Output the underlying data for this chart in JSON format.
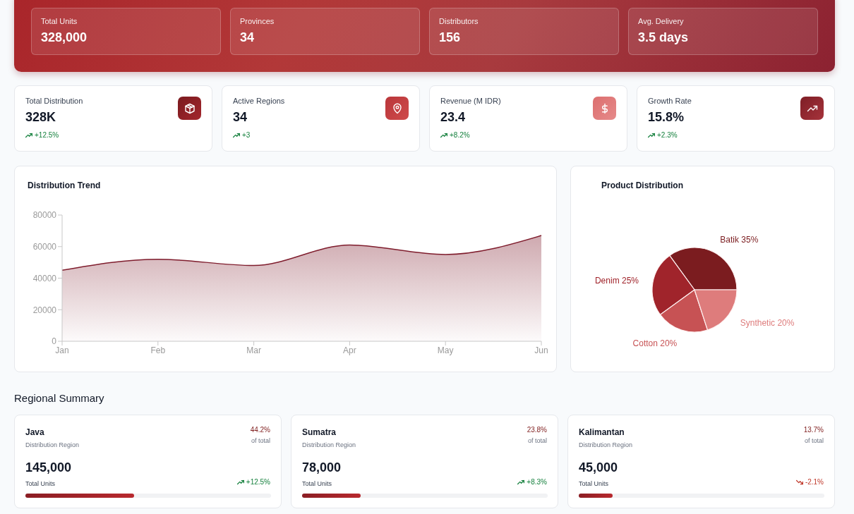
{
  "chart_data": [
    {
      "type": "other",
      "categories": [
        "Total Units",
        "Provinces",
        "Distributors",
        "Avg. Delivery"
      ],
      "annotations": [
        "328,000",
        "34",
        "156",
        "3.5 days"
      ]
    },
    {
      "type": "other",
      "categories": [
        "Total Distribution",
        "Active Regions",
        "Revenue (M IDR)",
        "Growth Rate"
      ],
      "annotations": [
        "328K",
        "+12.5%",
        "34",
        "+3",
        "23.4",
        "+8.2%",
        "15.8%",
        "+2.3%"
      ]
    },
    {
      "type": "area",
      "title": "Distribution Trend",
      "categories": [
        "Jan",
        "Feb",
        "Mar",
        "Apr",
        "May",
        "Jun"
      ],
      "values": [
        45000,
        52000,
        48000,
        61000,
        55000,
        67000
      ],
      "color": "#7f1d2d",
      "ylim": [
        0,
        80000
      ],
      "yticks": [
        0,
        20000,
        40000,
        60000,
        80000
      ]
    },
    {
      "type": "pie",
      "title": "Product Distribution",
      "categories": [
        "Batik",
        "Denim",
        "Cotton",
        "Synthetic"
      ],
      "values": [
        35,
        25,
        20,
        20
      ],
      "value_labels": [
        "35%",
        "25%",
        "20%",
        "20%"
      ],
      "colors": [
        "#7b1c1f",
        "#a0242b",
        "#c75254",
        "#de7c7c"
      ]
    },
    {
      "type": "other",
      "title": "Regional Summary",
      "categories": [
        "Java"
      ],
      "values": [
        44.2
      ],
      "value_labels": [
        "44.2%"
      ],
      "annotations": [
        "Distribution Region",
        "of total",
        "145,000",
        "Total Units",
        "+12.5%"
      ]
    },
    {
      "type": "other",
      "categories": [
        "Sumatra"
      ],
      "values": [
        23.8
      ],
      "value_labels": [
        "23.8%"
      ],
      "annotations": [
        "Distribution Region",
        "of total",
        "78,000",
        "Total Units",
        "+8.3%"
      ]
    },
    {
      "type": "other",
      "categories": [
        "Kalimantan"
      ],
      "values": [
        13.7
      ],
      "value_labels": [
        "13.7%"
      ],
      "annotations": [
        "Distribution Region",
        "of total",
        "45,000",
        "Total Units",
        "-2.1%"
      ]
    }
  ]
}
